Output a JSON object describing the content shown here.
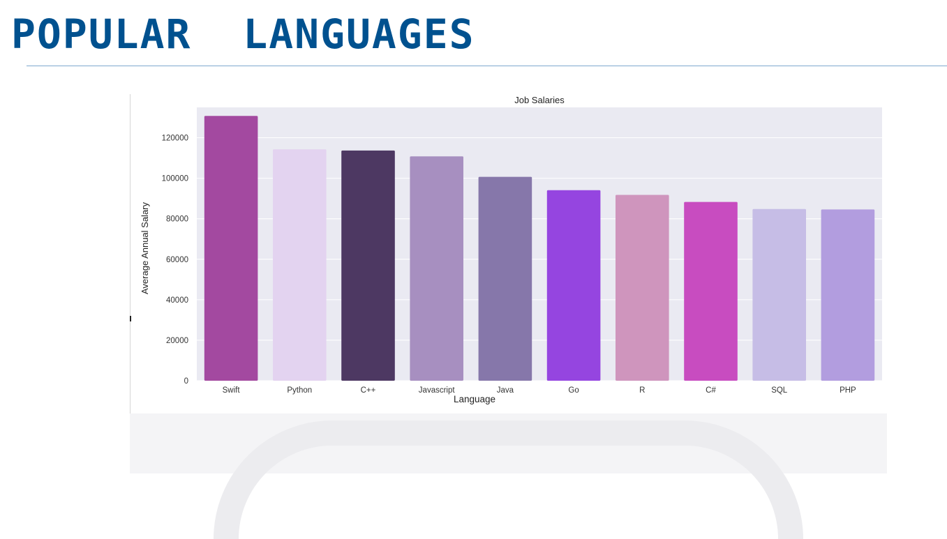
{
  "slide": {
    "title": "POPULAR  LANGUAGES"
  },
  "colors": {
    "title": "#00518f",
    "plot_background": "#eaeaf2",
    "gridline": "#ffffff"
  },
  "chart_data": {
    "type": "bar",
    "title": "Job Salaries",
    "xlabel": "Language",
    "ylabel": "Average Annual Salary",
    "categories": [
      "Swift",
      "Python",
      "C++",
      "Javascript",
      "Java",
      "Go",
      "R",
      "C#",
      "SQL",
      "PHP"
    ],
    "values": [
      130800,
      114300,
      113700,
      110800,
      100700,
      94100,
      91800,
      88300,
      84800,
      84600
    ],
    "colors": [
      "#a349a0",
      "#e3d3f0",
      "#4d3862",
      "#a78fc0",
      "#8677aa",
      "#9545e0",
      "#cf95bd",
      "#c84cc0",
      "#c6bde6",
      "#b29ddf"
    ],
    "ylim": [
      0,
      135000
    ],
    "yticks": [
      0,
      20000,
      40000,
      60000,
      80000,
      100000,
      120000
    ],
    "grid": true,
    "legend": "none"
  }
}
